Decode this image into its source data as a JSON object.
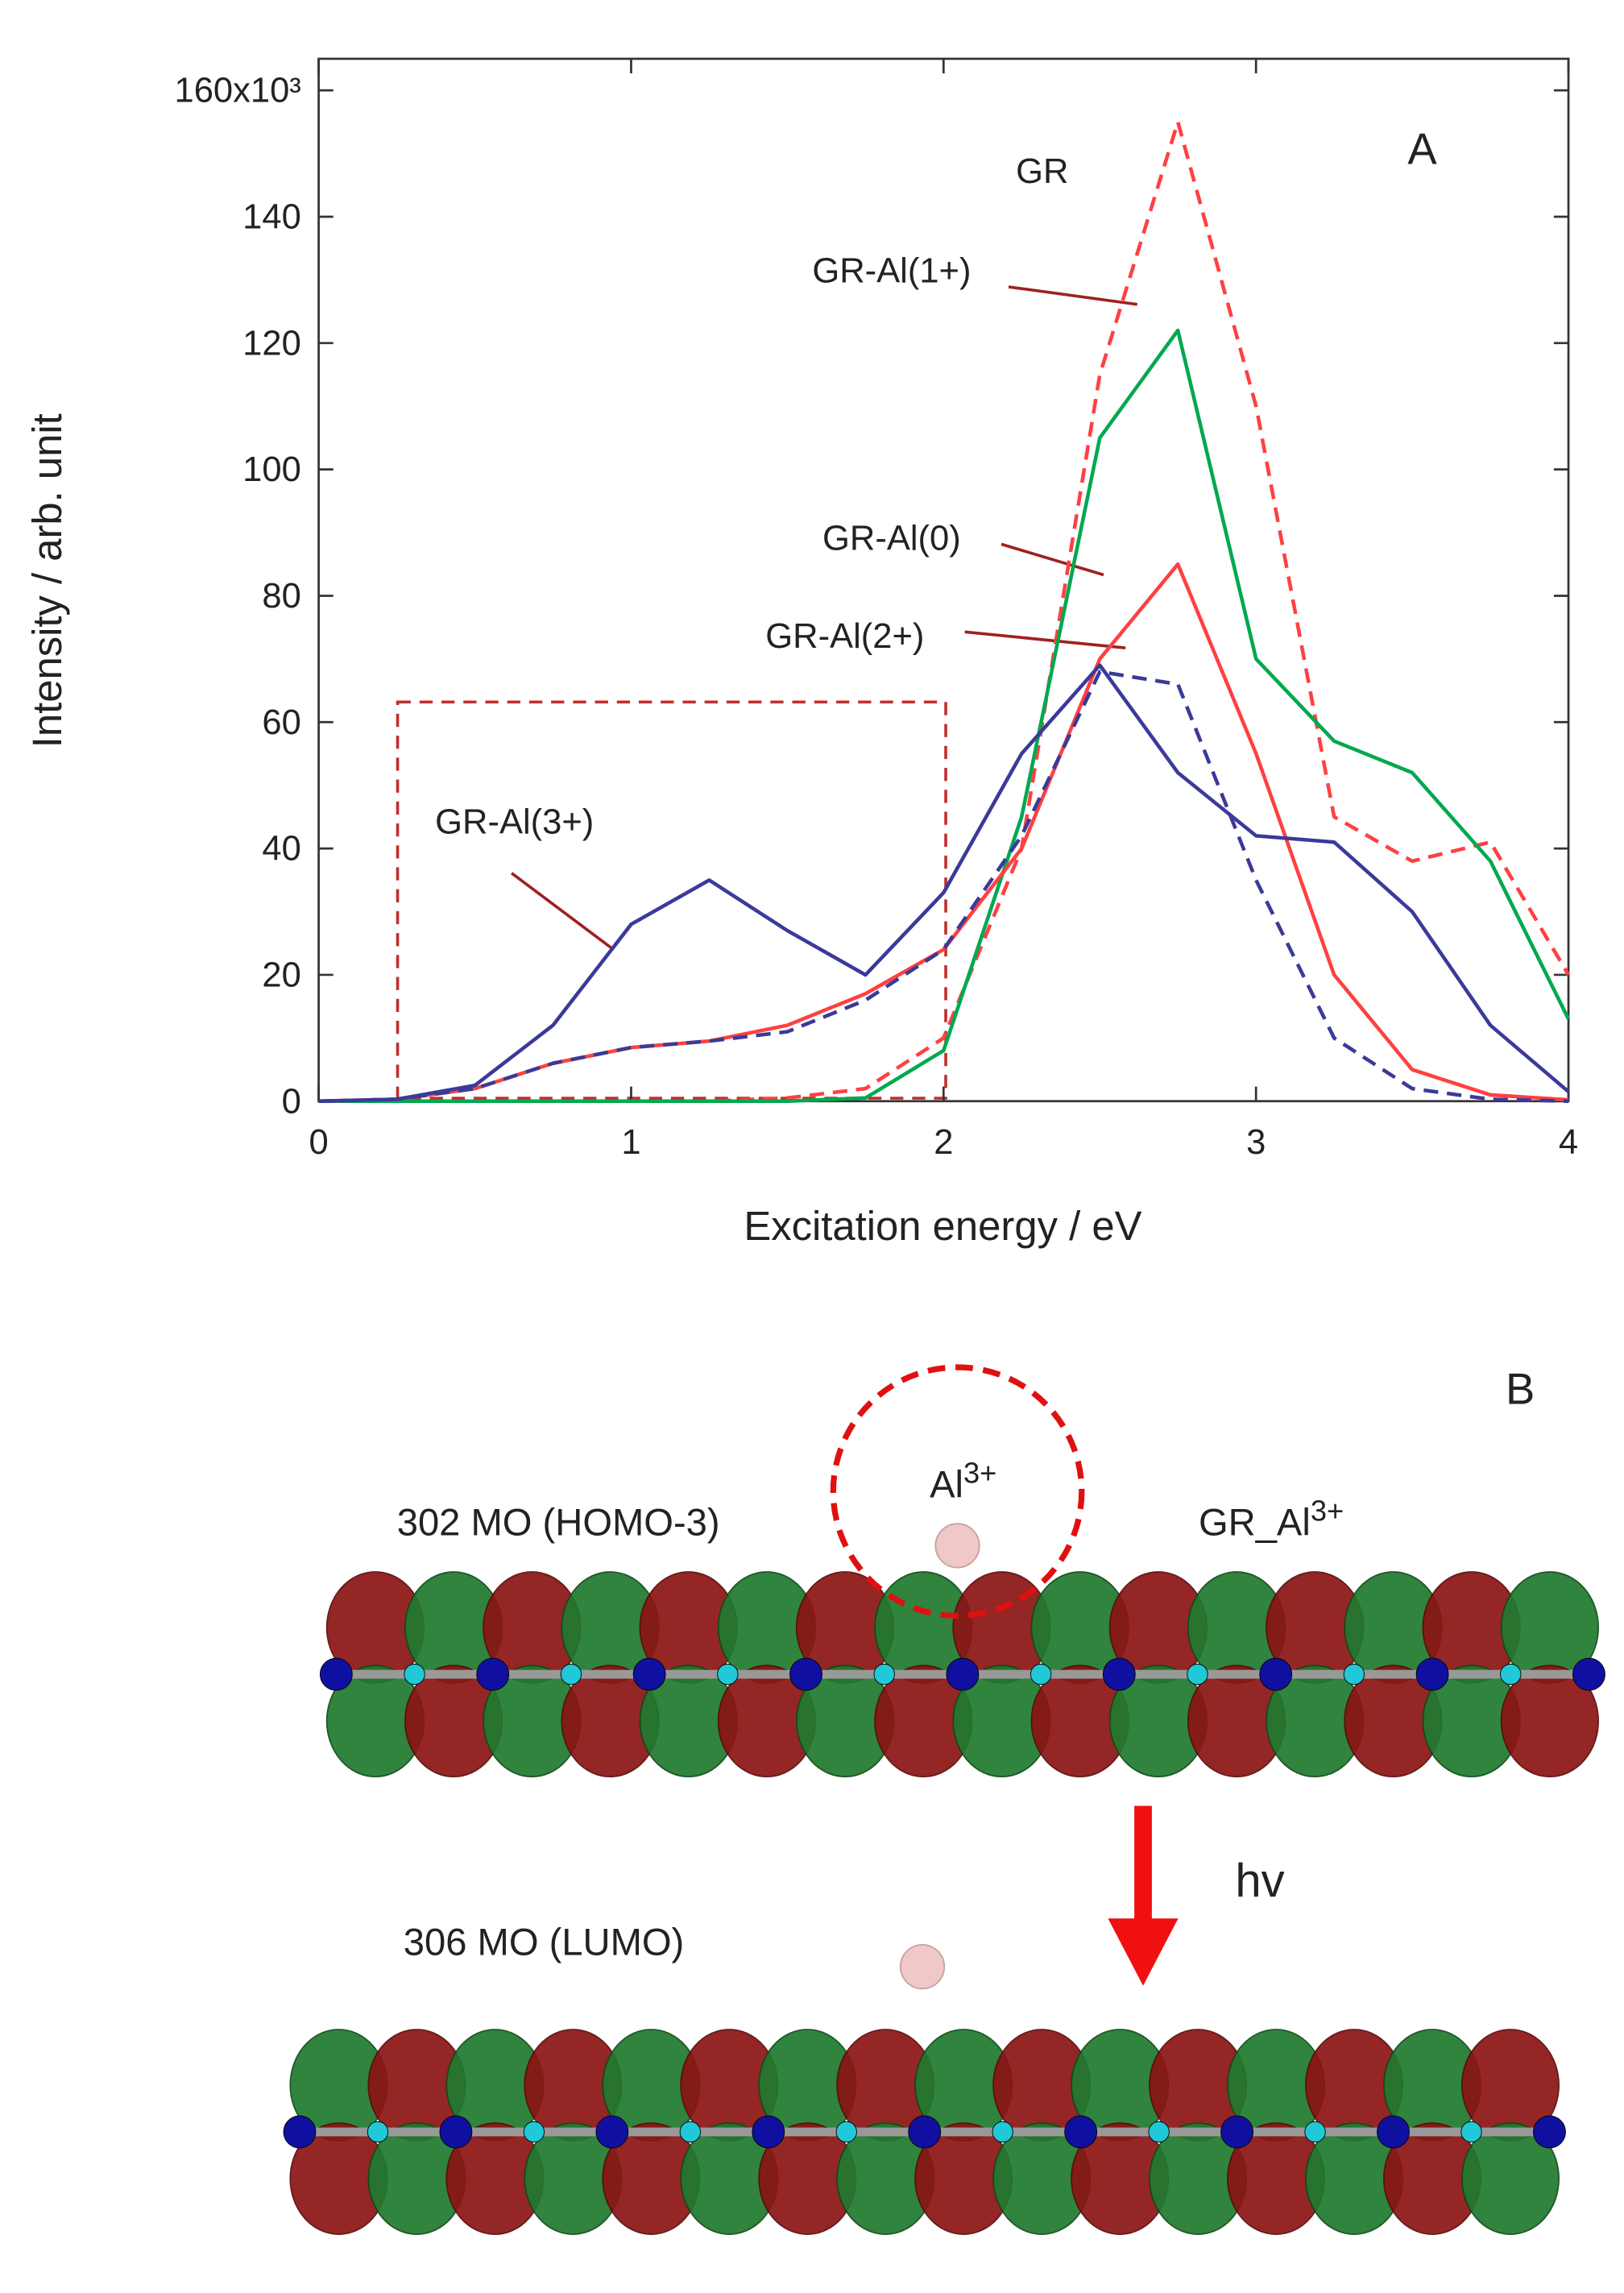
{
  "chart_data": {
    "type": "line",
    "panel_label": "A",
    "xlabel": "Excitation energy / eV",
    "ylabel": "Intensity / arb. unit",
    "x": [
      0,
      0.25,
      0.5,
      0.75,
      1,
      1.25,
      1.5,
      1.75,
      2,
      2.25,
      2.5,
      2.75,
      3,
      3.25,
      3.5,
      3.75,
      4
    ],
    "xlim": [
      0,
      4
    ],
    "xticks": [
      0,
      1,
      2,
      3,
      4
    ],
    "ylim": [
      0,
      165
    ],
    "yticks": [
      0,
      20,
      40,
      60,
      80,
      100,
      120,
      140,
      {
        "value": 160,
        "label": "160x10³"
      }
    ],
    "grid": false,
    "series": [
      {
        "name": "GR",
        "color": "#ff4040",
        "dashed": true,
        "values": [
          0,
          0,
          0,
          0,
          0,
          0,
          0.5,
          2,
          10,
          40,
          115,
          155,
          110,
          45,
          38,
          41,
          20
        ]
      },
      {
        "name": "GR-Al(1+)",
        "color": "#00a850",
        "dashed": false,
        "values": [
          0,
          0,
          0,
          0,
          0,
          0,
          0,
          0.5,
          8,
          45,
          105,
          122,
          70,
          57,
          52,
          38,
          13
        ]
      },
      {
        "name": "GR-Al(0)",
        "color": "#ff4040",
        "dashed": false,
        "values": [
          0,
          0.3,
          2,
          6,
          8.5,
          9.5,
          12,
          17,
          24,
          40,
          70,
          85,
          55,
          20,
          5,
          1,
          0.2
        ]
      },
      {
        "name": "GR-Al(2+)",
        "color": "#3a3a9a",
        "dashed": true,
        "values": [
          0,
          0.3,
          2,
          6,
          8.5,
          9.5,
          11,
          16,
          24,
          42,
          68,
          66,
          35,
          10,
          2,
          0.3,
          0
        ]
      },
      {
        "name": "GR-Al(3+)",
        "color": "#3a3a9a",
        "dashed": false,
        "values": [
          0,
          0.3,
          2.5,
          12,
          28,
          35,
          27,
          20,
          33,
          55,
          69,
          52,
          42,
          41,
          30,
          12,
          1.5
        ]
      }
    ]
  },
  "panel_b": {
    "label": "B",
    "homo_label": "302 MO (HOMO-3)",
    "lumo_label": "306 MO (LUMO)",
    "ion_label": {
      "text": "Al",
      "sup": "3+"
    },
    "system_label": {
      "text": "GR_Al",
      "sup": "3+"
    },
    "arrow_label": "hv"
  }
}
